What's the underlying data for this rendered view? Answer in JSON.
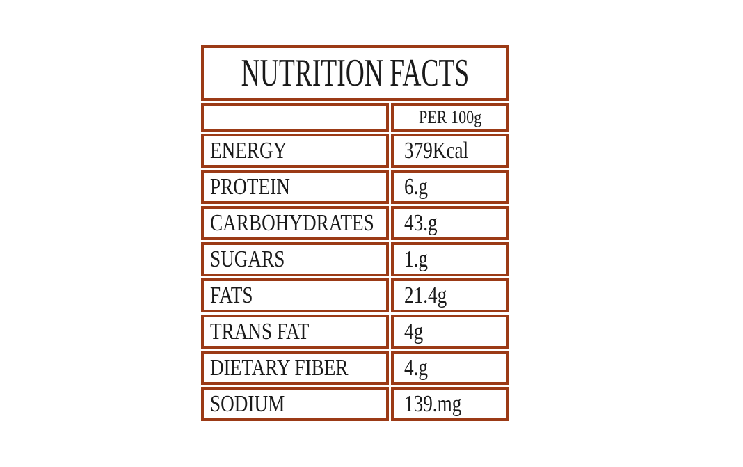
{
  "label": {
    "title": "NUTRITION FACTS",
    "column_header": "PER 100g",
    "rows": [
      {
        "name": "ENERGY",
        "value": "379Kcal"
      },
      {
        "name": "PROTEIN",
        "value": "6.g"
      },
      {
        "name": "CARBOHYDRATES",
        "value": "43.g"
      },
      {
        "name": "SUGARS",
        "value": "1.g"
      },
      {
        "name": "FATS",
        "value": "21.4g"
      },
      {
        "name": "TRANS FAT",
        "value": "4g"
      },
      {
        "name": "DIETARY FIBER",
        "value": "4.g"
      },
      {
        "name": "SODIUM",
        "value": "139.mg"
      }
    ]
  },
  "colors": {
    "border": "#9B3A16",
    "text": "#1A1A1A",
    "cell_background": "#FFFFFF",
    "page_background": "#FFFFFF"
  }
}
